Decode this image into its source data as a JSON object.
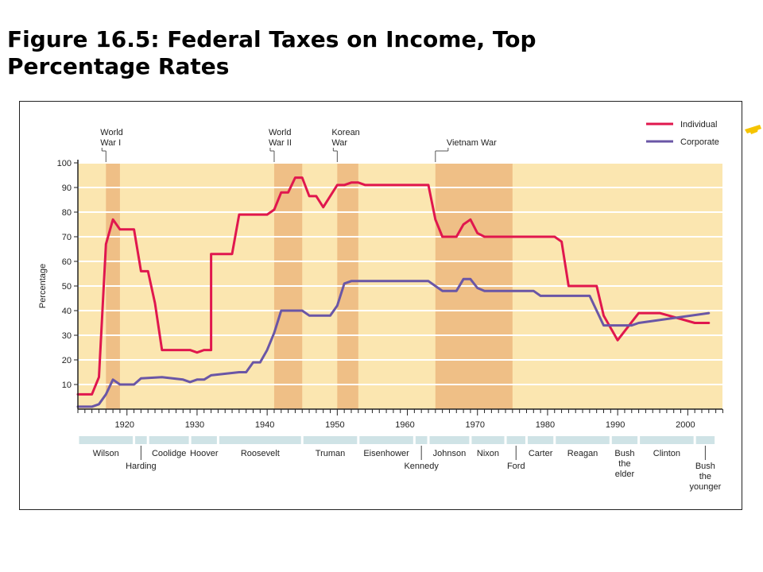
{
  "slide": {
    "title": "Figure 16.5: Federal Taxes on Income, Top Percentage Rates"
  },
  "colors": {
    "plot_background": "#fbe6b0",
    "war_band": "#efbf86",
    "president_bar": "#cfe3e6",
    "individual": "#e0174e",
    "corporate": "#6a56a6",
    "gridline": "#ffffff",
    "accent_mark": "#f5c400"
  },
  "chart_data": {
    "type": "line",
    "title": "",
    "xlabel": "",
    "ylabel": "Percentage",
    "xlim": [
      1913,
      2005
    ],
    "ylim": [
      0,
      100
    ],
    "x_ticks": [
      1920,
      1930,
      1940,
      1950,
      1960,
      1970,
      1980,
      1990,
      2000
    ],
    "y_ticks": [
      10,
      20,
      30,
      40,
      50,
      60,
      70,
      80,
      90,
      100
    ],
    "grid": "horizontal",
    "legend_position": "top-right",
    "series": [
      {
        "name": "Individual",
        "color": "#e0174e",
        "points": [
          [
            1913,
            6
          ],
          [
            1915,
            6
          ],
          [
            1916,
            13
          ],
          [
            1917,
            67
          ],
          [
            1918,
            77
          ],
          [
            1919,
            73
          ],
          [
            1921,
            73
          ],
          [
            1922,
            56
          ],
          [
            1923,
            56
          ],
          [
            1924,
            43
          ],
          [
            1925,
            24
          ],
          [
            1928,
            24
          ],
          [
            1929,
            24
          ],
          [
            1930,
            23
          ],
          [
            1931,
            24
          ],
          [
            1932,
            24
          ],
          [
            1932,
            63
          ],
          [
            1935,
            63
          ],
          [
            1936,
            79
          ],
          [
            1940,
            79
          ],
          [
            1941,
            81
          ],
          [
            1942,
            88
          ],
          [
            1943,
            88
          ],
          [
            1944,
            94
          ],
          [
            1945,
            94
          ],
          [
            1946,
            86.5
          ],
          [
            1947,
            86.5
          ],
          [
            1948,
            82
          ],
          [
            1950,
            91
          ],
          [
            1951,
            91
          ],
          [
            1952,
            92
          ],
          [
            1953,
            92
          ],
          [
            1954,
            91
          ],
          [
            1963,
            91
          ],
          [
            1964,
            77
          ],
          [
            1965,
            70
          ],
          [
            1967,
            70
          ],
          [
            1968,
            75
          ],
          [
            1969,
            77
          ],
          [
            1970,
            71.5
          ],
          [
            1971,
            70
          ],
          [
            1981,
            70
          ],
          [
            1982,
            68
          ],
          [
            1983,
            50
          ],
          [
            1987,
            50
          ],
          [
            1988,
            38
          ],
          [
            1990,
            28
          ],
          [
            1993,
            39
          ],
          [
            1996,
            39
          ],
          [
            2001,
            35
          ],
          [
            2003,
            35
          ]
        ]
      },
      {
        "name": "Corporate",
        "color": "#6a56a6",
        "points": [
          [
            1913,
            1
          ],
          [
            1915,
            1
          ],
          [
            1916,
            2
          ],
          [
            1917,
            6
          ],
          [
            1918,
            12
          ],
          [
            1919,
            10
          ],
          [
            1921,
            10
          ],
          [
            1922,
            12.5
          ],
          [
            1925,
            13
          ],
          [
            1928,
            12
          ],
          [
            1929,
            11
          ],
          [
            1930,
            12
          ],
          [
            1931,
            12
          ],
          [
            1932,
            13.75
          ],
          [
            1936,
            15
          ],
          [
            1937,
            15
          ],
          [
            1938,
            19
          ],
          [
            1939,
            19
          ],
          [
            1940,
            24
          ],
          [
            1941,
            31
          ],
          [
            1942,
            40
          ],
          [
            1944,
            40
          ],
          [
            1945,
            40
          ],
          [
            1946,
            38
          ],
          [
            1948,
            38
          ],
          [
            1949,
            38
          ],
          [
            1950,
            42
          ],
          [
            1951,
            51
          ],
          [
            1952,
            52
          ],
          [
            1963,
            52
          ],
          [
            1964,
            50
          ],
          [
            1965,
            48
          ],
          [
            1967,
            48
          ],
          [
            1968,
            52.8
          ],
          [
            1969,
            52.8
          ],
          [
            1970,
            49.2
          ],
          [
            1971,
            48
          ],
          [
            1978,
            48
          ],
          [
            1979,
            46
          ],
          [
            1986,
            46
          ],
          [
            1987,
            40
          ],
          [
            1988,
            34
          ],
          [
            1992,
            34
          ],
          [
            1993,
            35
          ],
          [
            2003,
            39
          ]
        ]
      }
    ],
    "war_periods": [
      {
        "label": "World War I",
        "label_lines": [
          "World",
          "War I"
        ],
        "start": 1917,
        "end": 1919
      },
      {
        "label": "World War II",
        "label_lines": [
          "World",
          "War II"
        ],
        "start": 1941,
        "end": 1945
      },
      {
        "label": "Korean War",
        "label_lines": [
          "Korean",
          "War"
        ],
        "start": 1950,
        "end": 1953
      },
      {
        "label": "Vietnam War",
        "label_lines": [
          "Vietnam War"
        ],
        "start": 1964,
        "end": 1975
      }
    ],
    "presidents": [
      {
        "name_lines": [
          "Wilson"
        ],
        "start": 1913,
        "end": 1921,
        "level": 0
      },
      {
        "name_lines": [
          "Harding"
        ],
        "start": 1921,
        "end": 1923,
        "level": 1
      },
      {
        "name_lines": [
          "Coolidge"
        ],
        "start": 1923,
        "end": 1929,
        "level": 0
      },
      {
        "name_lines": [
          "Hoover"
        ],
        "start": 1929,
        "end": 1933,
        "level": 0
      },
      {
        "name_lines": [
          "Roosevelt"
        ],
        "start": 1933,
        "end": 1945,
        "level": 0
      },
      {
        "name_lines": [
          "Truman"
        ],
        "start": 1945,
        "end": 1953,
        "level": 0
      },
      {
        "name_lines": [
          "Eisenhower"
        ],
        "start": 1953,
        "end": 1961,
        "level": 0
      },
      {
        "name_lines": [
          "Kennedy"
        ],
        "start": 1961,
        "end": 1963,
        "level": 1
      },
      {
        "name_lines": [
          "Johnson"
        ],
        "start": 1963,
        "end": 1969,
        "level": 0
      },
      {
        "name_lines": [
          "Nixon"
        ],
        "start": 1969,
        "end": 1974,
        "level": 0
      },
      {
        "name_lines": [
          "Ford"
        ],
        "start": 1974,
        "end": 1977,
        "level": 1
      },
      {
        "name_lines": [
          "Carter"
        ],
        "start": 1977,
        "end": 1981,
        "level": 0
      },
      {
        "name_lines": [
          "Reagan"
        ],
        "start": 1981,
        "end": 1989,
        "level": 0
      },
      {
        "name_lines": [
          "Bush",
          "the",
          "elder"
        ],
        "start": 1989,
        "end": 1993,
        "level": 0
      },
      {
        "name_lines": [
          "Clinton"
        ],
        "start": 1993,
        "end": 2001,
        "level": 0
      },
      {
        "name_lines": [
          "Bush",
          "the",
          "younger"
        ],
        "start": 2001,
        "end": 2004,
        "level": 1
      }
    ]
  }
}
